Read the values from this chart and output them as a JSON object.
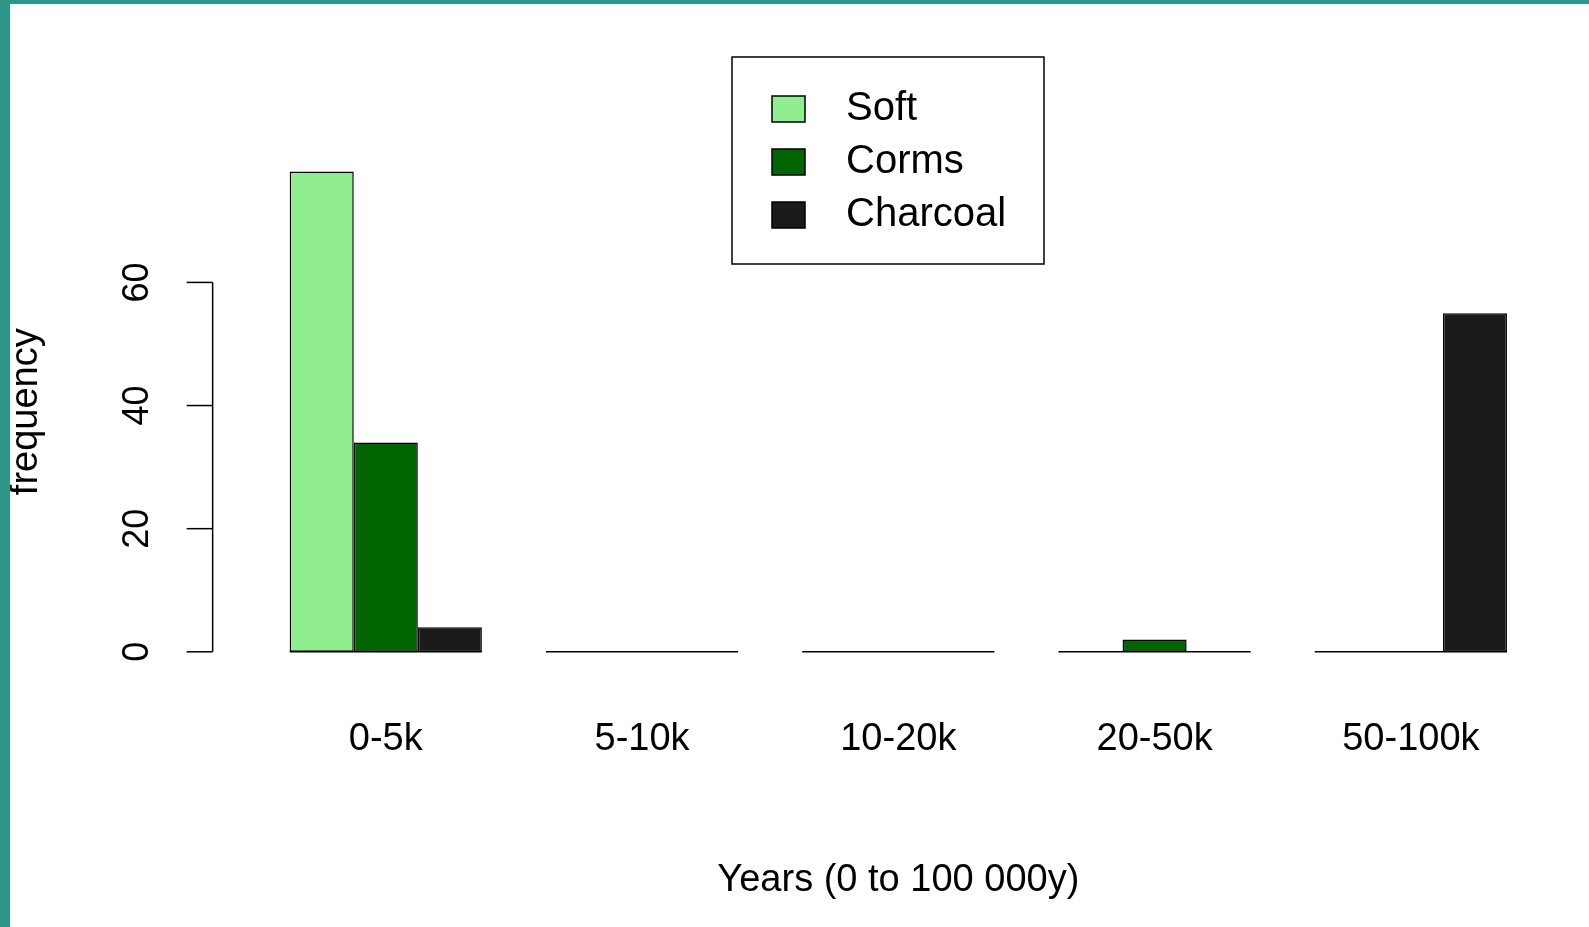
{
  "chart_data": {
    "type": "bar",
    "xlabel": "Years (0 to 100 000y)",
    "ylabel": "frequency",
    "categories": [
      "0-5k",
      "5-10k",
      "10-20k",
      "20-50k",
      "50-100k"
    ],
    "series": [
      {
        "name": "Soft",
        "color": "#90ee90",
        "values": [
          78,
          0,
          0,
          0,
          0
        ]
      },
      {
        "name": "Corms",
        "color": "#006400",
        "values": [
          34,
          0,
          0,
          2,
          0
        ]
      },
      {
        "name": "Charcoal",
        "color": "#1a1a1a",
        "values": [
          4,
          0,
          0,
          0,
          55
        ]
      }
    ],
    "ylim": [
      0,
      78
    ],
    "yticks": [
      0,
      20,
      40,
      60
    ],
    "grid": false,
    "legend": "top"
  }
}
